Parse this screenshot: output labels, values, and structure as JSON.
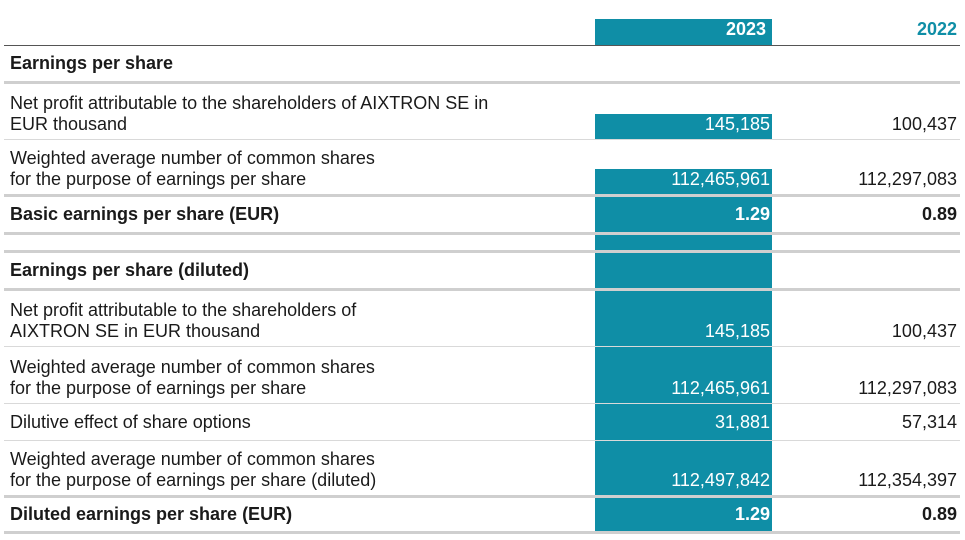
{
  "columns": {
    "current": "2023",
    "prior": "2022"
  },
  "sections": [
    {
      "heading": "Earnings per share",
      "rows": [
        {
          "label": "Net profit attributable to the shareholders of AIXTRON SE in\nEUR thousand",
          "v2023": "145,185",
          "v2022": "100,437"
        },
        {
          "label": "Weighted average number of common shares\nfor the purpose of earnings per share",
          "v2023": "112,465,961",
          "v2022": "112,297,083"
        },
        {
          "label": "Basic earnings per share (EUR)",
          "v2023": "1.29",
          "v2022": "0.89"
        }
      ]
    },
    {
      "heading": "Earnings per share (diluted)",
      "rows": [
        {
          "label": "Net profit attributable to the shareholders of\nAIXTRON SE in EUR thousand",
          "v2023": "145,185",
          "v2022": "100,437"
        },
        {
          "label": "Weighted average number of common shares\nfor the purpose of earnings per share",
          "v2023": "112,465,961",
          "v2022": "112,297,083"
        },
        {
          "label": "Dilutive effect of share options",
          "v2023": "31,881",
          "v2022": "57,314"
        },
        {
          "label": "Weighted average number of common shares\nfor the purpose of earnings per share (diluted)",
          "v2023": "112,497,842",
          "v2022": "112,354,397"
        },
        {
          "label": "Diluted earnings per share (EUR)",
          "v2023": "1.29",
          "v2022": "0.89"
        }
      ]
    }
  ],
  "colors": {
    "accent": "#0f8ea6",
    "text": "#1a1a1a"
  }
}
